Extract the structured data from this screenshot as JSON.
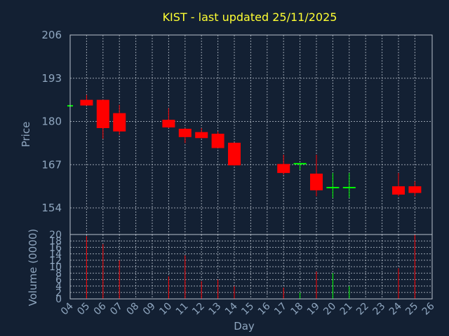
{
  "chart_data": {
    "type": "candlestick",
    "title": "KIST - last updated 25/11/2025",
    "xlabel": "Day",
    "price_ylabel": "Price",
    "volume_ylabel": "Volume (0000)",
    "x_ticks": [
      "04",
      "05",
      "06",
      "07",
      "08",
      "09",
      "10",
      "11",
      "12",
      "13",
      "14",
      "15",
      "16",
      "17",
      "18",
      "19",
      "20",
      "21",
      "22",
      "23",
      "24",
      "25",
      "26"
    ],
    "price_ticks": [
      154,
      167,
      180,
      193,
      206
    ],
    "price_ylim": [
      146,
      206
    ],
    "volume_ticks": [
      0,
      2,
      4,
      6,
      8,
      10,
      12,
      14,
      16,
      18,
      20
    ],
    "volume_ylim": [
      0,
      20
    ],
    "grid": true,
    "colors": {
      "up": "#00ff00",
      "down": "#ff0000",
      "flat": "#00ff00",
      "title": "#ffff33",
      "text": "#8fa6bf",
      "background": "#132033"
    },
    "candles": [
      {
        "day": "04",
        "open": 184.7,
        "high": 184.7,
        "low": 184.7,
        "close": 184.7,
        "volume": 0
      },
      {
        "day": "05",
        "open": 186.5,
        "high": 188.0,
        "low": 185.0,
        "close": 184.8,
        "volume": 19.5
      },
      {
        "day": "06",
        "open": 186.5,
        "high": 186.5,
        "low": 174.8,
        "close": 178.0,
        "volume": 17.0
      },
      {
        "day": "07",
        "open": 182.5,
        "high": 185.0,
        "low": 176.0,
        "close": 177.0,
        "volume": 12.0
      },
      {
        "day": "10",
        "open": 180.5,
        "high": 184.0,
        "low": 178.0,
        "close": 178.2,
        "volume": 7.0
      },
      {
        "day": "11",
        "open": 177.8,
        "high": 178.0,
        "low": 173.5,
        "close": 175.3,
        "volume": 13.5
      },
      {
        "day": "12",
        "open": 176.8,
        "high": 178.0,
        "low": 175.0,
        "close": 175.0,
        "volume": 5.5
      },
      {
        "day": "13",
        "open": 176.3,
        "high": 177.0,
        "low": 172.0,
        "close": 172.0,
        "volume": 6.0
      },
      {
        "day": "14",
        "open": 173.6,
        "high": 173.6,
        "low": 166.7,
        "close": 166.8,
        "volume": 4.0
      },
      {
        "day": "17",
        "open": 167.2,
        "high": 170.0,
        "low": 164.0,
        "close": 164.5,
        "volume": 3.5
      },
      {
        "day": "18",
        "open": 167.3,
        "high": 167.3,
        "low": 165.5,
        "close": 167.3,
        "volume": 2.0
      },
      {
        "day": "19",
        "open": 164.3,
        "high": 170.0,
        "low": 157.5,
        "close": 159.3,
        "volume": 8.5
      },
      {
        "day": "20",
        "open": 160.1,
        "high": 164.5,
        "low": 157.0,
        "close": 160.1,
        "volume": 8.0
      },
      {
        "day": "21",
        "open": 160.1,
        "high": 164.5,
        "low": 157.0,
        "close": 160.1,
        "volume": 4.0
      },
      {
        "day": "24",
        "open": 160.5,
        "high": 164.5,
        "low": 157.5,
        "close": 158.0,
        "volume": 9.5
      },
      {
        "day": "25",
        "open": 160.5,
        "high": 162.0,
        "low": 157.5,
        "close": 158.5,
        "volume": 20.0
      }
    ]
  }
}
